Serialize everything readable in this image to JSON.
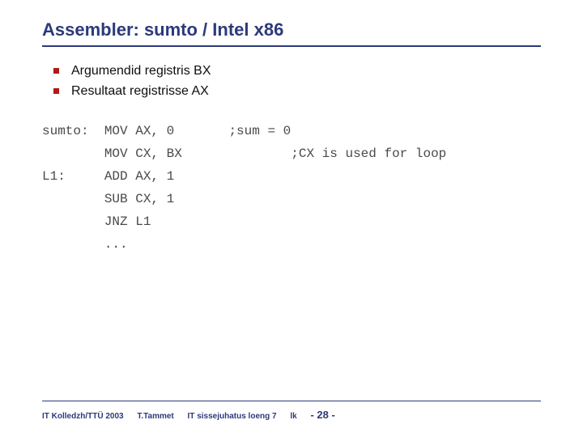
{
  "title": "Assembler: sumto / Intel x86",
  "bullets": [
    "Argumendid registris BX",
    "Resultaat registrisse AX"
  ],
  "code": "sumto:\tMOV AX, 0\t;sum = 0\n\tMOV CX, BX\t\t;CX is used for loop\nL1:\tADD AX, 1\n\tSUB CX, 1\n\tJNZ L1\n\t...",
  "footer": {
    "org": "IT Kolledzh/TTÜ 2003",
    "author": "T.Tammet",
    "course": "IT sissejuhatus loeng 7",
    "pagelabel": "lk",
    "pagenum": "- 28 -"
  },
  "colors": {
    "title": "#2c3a7a",
    "bullet": "#b01a1a",
    "text": "#0e0e0e",
    "code": "#4a4a4a",
    "footer": "#2c3a7a",
    "background": "#ffffff"
  },
  "typography": {
    "title_fontsize": 22,
    "body_fontsize": 16,
    "code_fontsize": 16,
    "footer_fontsize": 10,
    "code_font": "Courier New"
  }
}
